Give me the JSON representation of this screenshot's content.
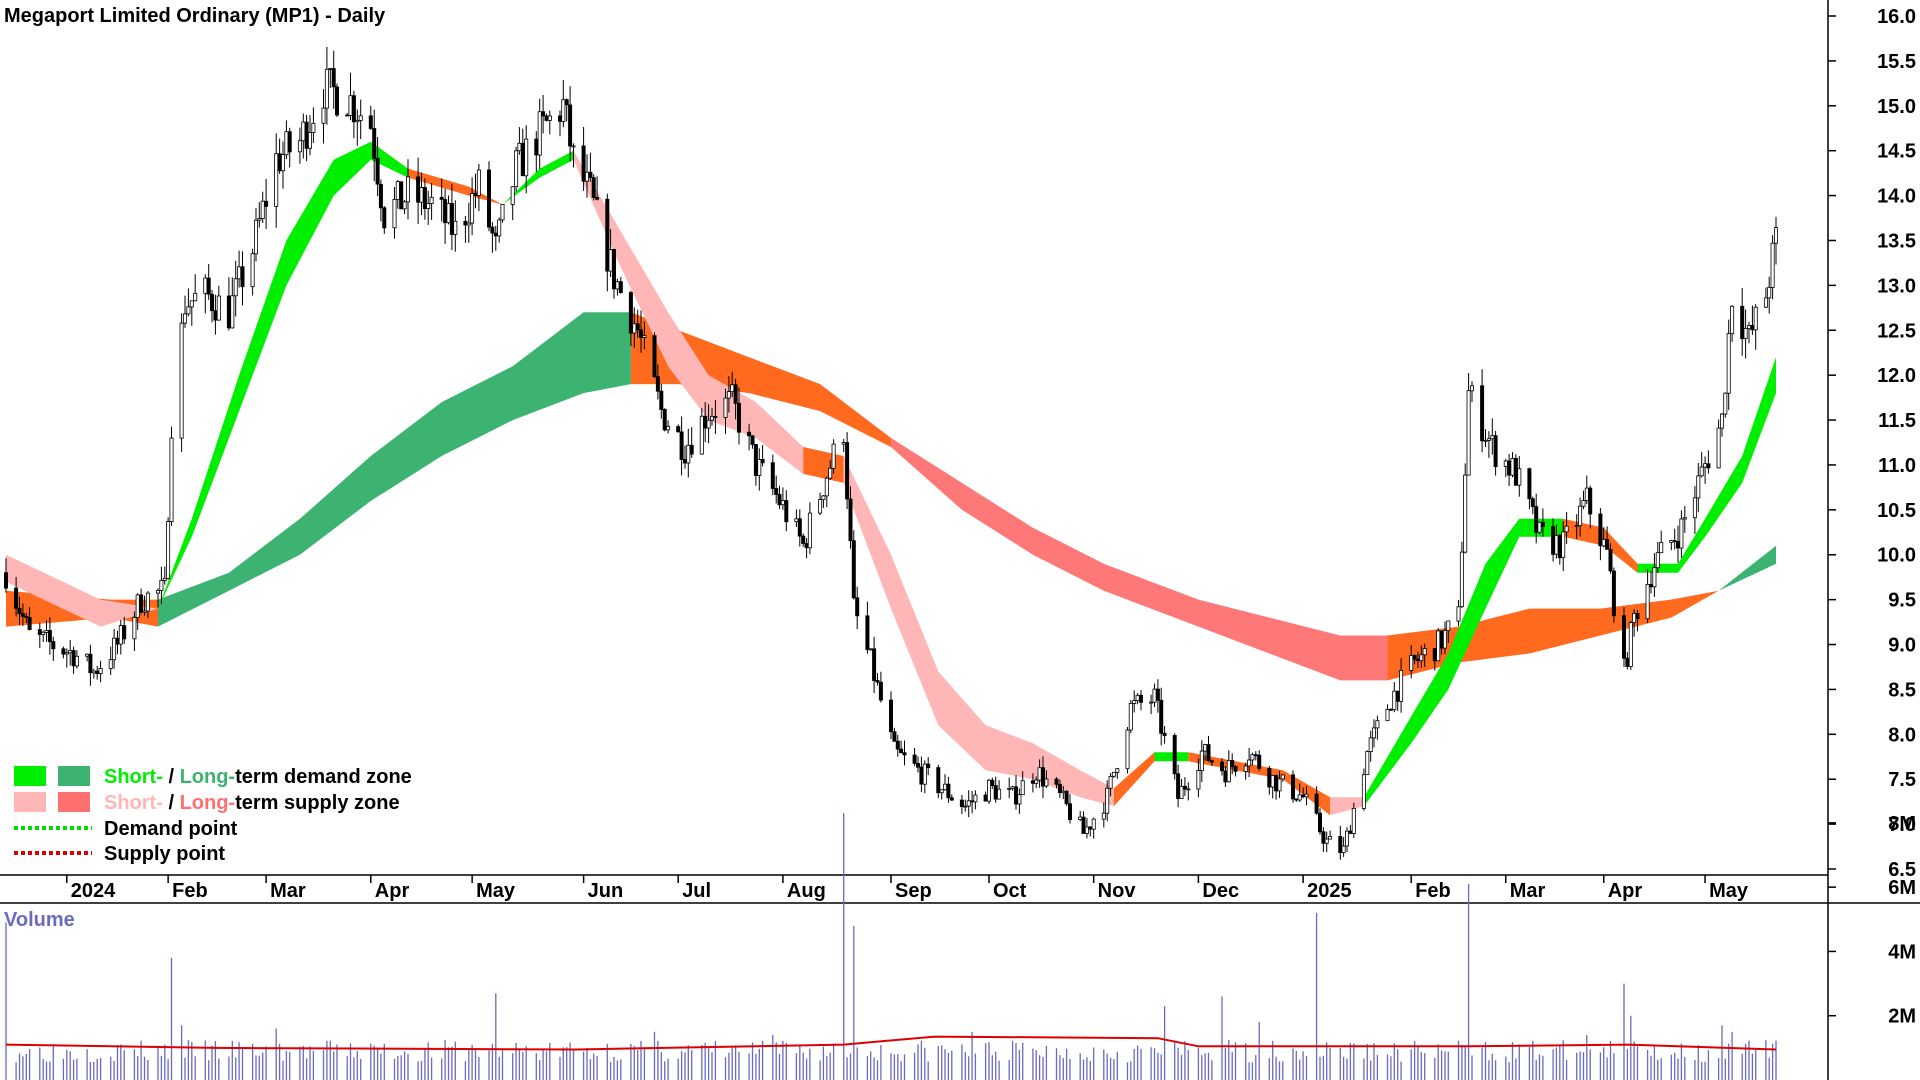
{
  "chart_data": {
    "type": "candlestick",
    "title": "Megaport Limited Ordinary (MP1) - Daily",
    "y_ticks": [
      6.5,
      7.0,
      7.5,
      8.0,
      8.5,
      9.0,
      9.5,
      10.0,
      10.5,
      11.0,
      11.5,
      12.0,
      12.5,
      13.0,
      13.5,
      14.0,
      14.5,
      15.0,
      15.5,
      16.0
    ],
    "ylim": [
      6.2,
      16.2
    ],
    "x_range": [
      "2023-12-15",
      "2025-05-22"
    ],
    "x_labels": [
      {
        "date": "2024-01-02",
        "label": "2024"
      },
      {
        "date": "2024-02-01",
        "label": "Feb"
      },
      {
        "date": "2024-03-01",
        "label": "Mar"
      },
      {
        "date": "2024-04-01",
        "label": "Apr"
      },
      {
        "date": "2024-05-01",
        "label": "May"
      },
      {
        "date": "2024-06-03",
        "label": "Jun"
      },
      {
        "date": "2024-07-01",
        "label": "Jul"
      },
      {
        "date": "2024-08-01",
        "label": "Aug"
      },
      {
        "date": "2024-09-02",
        "label": "Sep"
      },
      {
        "date": "2024-10-01",
        "label": "Oct"
      },
      {
        "date": "2024-11-01",
        "label": "Nov"
      },
      {
        "date": "2024-12-02",
        "label": "Dec"
      },
      {
        "date": "2025-01-02",
        "label": "2025"
      },
      {
        "date": "2025-02-03",
        "label": "Feb"
      },
      {
        "date": "2025-03-03",
        "label": "Mar"
      },
      {
        "date": "2025-04-01",
        "label": "Apr"
      },
      {
        "date": "2025-05-01",
        "label": "May"
      }
    ],
    "close_path": [
      [
        "2023-12-15",
        9.8
      ],
      [
        "2023-12-22",
        9.1
      ],
      [
        "2024-01-04",
        8.9
      ],
      [
        "2024-01-10",
        8.7
      ],
      [
        "2024-01-17",
        9.0
      ],
      [
        "2024-01-24",
        9.5
      ],
      [
        "2024-01-31",
        9.6
      ],
      [
        "2024-02-02",
        11.5
      ],
      [
        "2024-02-06",
        12.8
      ],
      [
        "2024-02-12",
        12.9
      ],
      [
        "2024-02-19",
        12.7
      ],
      [
        "2024-02-26",
        13.4
      ],
      [
        "2024-03-04",
        14.4
      ],
      [
        "2024-03-11",
        14.6
      ],
      [
        "2024-03-18",
        15.2
      ],
      [
        "2024-03-25",
        15.1
      ],
      [
        "2024-04-01",
        14.8
      ],
      [
        "2024-04-05",
        13.8
      ],
      [
        "2024-04-12",
        14.0
      ],
      [
        "2024-04-19",
        13.9
      ],
      [
        "2024-04-26",
        13.6
      ],
      [
        "2024-05-03",
        14.1
      ],
      [
        "2024-05-08",
        13.4
      ],
      [
        "2024-05-14",
        14.3
      ],
      [
        "2024-05-21",
        14.7
      ],
      [
        "2024-05-28",
        15.0
      ],
      [
        "2024-05-31",
        14.4
      ],
      [
        "2024-06-05",
        14.0
      ],
      [
        "2024-06-12",
        13.1
      ],
      [
        "2024-06-19",
        12.5
      ],
      [
        "2024-06-26",
        11.6
      ],
      [
        "2024-07-03",
        11.2
      ],
      [
        "2024-07-10",
        11.6
      ],
      [
        "2024-07-17",
        11.7
      ],
      [
        "2024-07-24",
        11.0
      ],
      [
        "2024-07-31",
        10.6
      ],
      [
        "2024-08-07",
        10.1
      ],
      [
        "2024-08-14",
        10.9
      ],
      [
        "2024-08-19",
        11.4
      ],
      [
        "2024-08-22",
        9.4
      ],
      [
        "2024-08-27",
        8.8
      ],
      [
        "2024-09-03",
        7.8
      ],
      [
        "2024-09-10",
        7.6
      ],
      [
        "2024-09-17",
        7.4
      ],
      [
        "2024-09-24",
        7.2
      ],
      [
        "2024-10-01",
        7.4
      ],
      [
        "2024-10-08",
        7.3
      ],
      [
        "2024-10-15",
        7.6
      ],
      [
        "2024-10-22",
        7.3
      ],
      [
        "2024-10-29",
        6.9
      ],
      [
        "2024-11-05",
        7.3
      ],
      [
        "2024-11-12",
        8.3
      ],
      [
        "2024-11-19",
        8.4
      ],
      [
        "2024-11-26",
        7.3
      ],
      [
        "2024-12-03",
        7.8
      ],
      [
        "2024-12-10",
        7.6
      ],
      [
        "2024-12-17",
        7.8
      ],
      [
        "2024-12-24",
        7.5
      ],
      [
        "2025-01-02",
        7.3
      ],
      [
        "2025-01-09",
        6.8
      ],
      [
        "2025-01-14",
        6.7
      ],
      [
        "2025-01-21",
        7.8
      ],
      [
        "2025-01-28",
        8.4
      ],
      [
        "2025-02-04",
        8.8
      ],
      [
        "2025-02-11",
        9.0
      ],
      [
        "2025-02-17",
        9.3
      ],
      [
        "2025-02-20",
        11.8
      ],
      [
        "2025-02-27",
        11.2
      ],
      [
        "2025-03-06",
        10.9
      ],
      [
        "2025-03-13",
        10.2
      ],
      [
        "2025-03-20",
        10.1
      ],
      [
        "2025-03-27",
        10.6
      ],
      [
        "2025-04-02",
        10.0
      ],
      [
        "2025-04-07",
        8.7
      ],
      [
        "2025-04-10",
        9.3
      ],
      [
        "2025-04-16",
        9.9
      ],
      [
        "2025-04-24",
        10.3
      ],
      [
        "2025-05-01",
        11.0
      ],
      [
        "2025-05-06",
        11.5
      ],
      [
        "2025-05-09",
        12.9
      ],
      [
        "2025-05-14",
        12.4
      ],
      [
        "2025-05-19",
        12.9
      ],
      [
        "2025-05-22",
        13.5
      ]
    ],
    "short_band": [
      [
        "2023-12-15",
        10.0,
        9.7
      ],
      [
        "2024-01-12",
        9.5,
        9.2
      ],
      [
        "2024-01-29",
        9.4,
        9.4
      ],
      [
        "2024-02-08",
        10.4,
        10.2
      ],
      [
        "2024-02-22",
        12.0,
        11.6
      ],
      [
        "2024-03-07",
        13.5,
        13.0
      ],
      [
        "2024-03-21",
        14.4,
        14.0
      ],
      [
        "2024-04-01",
        14.6,
        14.4
      ],
      [
        "2024-04-12",
        14.3,
        14.2
      ],
      [
        "2024-04-30",
        14.1,
        14.0
      ],
      [
        "2024-05-10",
        13.9,
        13.9
      ],
      [
        "2024-05-21",
        14.3,
        14.2
      ],
      [
        "2024-05-31",
        14.5,
        14.4
      ],
      [
        "2024-06-14",
        13.6,
        13.2
      ],
      [
        "2024-06-28",
        12.7,
        12.1
      ],
      [
        "2024-07-10",
        12.0,
        11.5
      ],
      [
        "2024-07-24",
        11.7,
        11.3
      ],
      [
        "2024-08-07",
        11.2,
        10.9
      ],
      [
        "2024-08-19",
        11.1,
        10.8
      ],
      [
        "2024-09-02",
        10.0,
        9.4
      ],
      [
        "2024-09-16",
        8.7,
        8.1
      ],
      [
        "2024-09-30",
        8.1,
        7.6
      ],
      [
        "2024-10-14",
        7.9,
        7.5
      ],
      [
        "2024-10-28",
        7.6,
        7.3
      ],
      [
        "2024-11-07",
        7.4,
        7.2
      ],
      [
        "2024-11-19",
        7.8,
        7.7
      ],
      [
        "2024-11-29",
        7.8,
        7.7
      ],
      [
        "2024-12-13",
        7.7,
        7.6
      ],
      [
        "2024-12-27",
        7.6,
        7.5
      ],
      [
        "2025-01-10",
        7.3,
        7.1
      ],
      [
        "2025-01-20",
        7.3,
        7.2
      ],
      [
        "2025-02-03",
        8.2,
        7.9
      ],
      [
        "2025-02-14",
        8.9,
        8.5
      ],
      [
        "2025-02-25",
        9.9,
        9.4
      ],
      [
        "2025-03-07",
        10.4,
        10.2
      ],
      [
        "2025-03-20",
        10.4,
        10.2
      ],
      [
        "2025-04-01",
        10.3,
        10.1
      ],
      [
        "2025-04-11",
        9.9,
        9.8
      ],
      [
        "2025-04-23",
        9.9,
        9.8
      ],
      [
        "2025-05-01",
        10.4,
        10.2
      ],
      [
        "2025-05-12",
        11.1,
        10.8
      ],
      [
        "2025-05-22",
        12.2,
        11.8
      ]
    ],
    "long_band": [
      [
        "2023-12-15",
        9.6,
        9.2
      ],
      [
        "2024-01-15",
        9.5,
        9.3
      ],
      [
        "2024-01-29",
        9.5,
        9.2
      ],
      [
        "2024-02-19",
        9.8,
        9.6
      ],
      [
        "2024-03-11",
        10.4,
        10.0
      ],
      [
        "2024-04-01",
        11.1,
        10.6
      ],
      [
        "2024-04-22",
        11.7,
        11.1
      ],
      [
        "2024-05-13",
        12.1,
        11.5
      ],
      [
        "2024-06-03",
        12.7,
        11.8
      ],
      [
        "2024-06-17",
        12.7,
        11.9
      ],
      [
        "2024-07-01",
        12.5,
        11.9
      ],
      [
        "2024-07-22",
        12.2,
        11.8
      ],
      [
        "2024-08-12",
        11.9,
        11.6
      ],
      [
        "2024-09-02",
        11.3,
        11.2
      ],
      [
        "2024-09-23",
        10.8,
        10.5
      ],
      [
        "2024-10-14",
        10.3,
        10.0
      ],
      [
        "2024-11-04",
        9.9,
        9.6
      ],
      [
        "2024-12-02",
        9.5,
        9.2
      ],
      [
        "2024-12-23",
        9.3,
        8.9
      ],
      [
        "2025-01-13",
        9.1,
        8.6
      ],
      [
        "2025-01-27",
        9.1,
        8.6
      ],
      [
        "2025-02-17",
        9.2,
        8.8
      ],
      [
        "2025-03-10",
        9.4,
        8.9
      ],
      [
        "2025-03-31",
        9.4,
        9.1
      ],
      [
        "2025-04-21",
        9.5,
        9.3
      ],
      [
        "2025-05-05",
        9.6,
        9.6
      ],
      [
        "2025-05-22",
        10.1,
        9.9
      ]
    ],
    "legend": [
      {
        "label_short": "Short-",
        "label_sep": " / ",
        "label_long": "Long-",
        "label_rest": "term demand zone",
        "short_color": "#00ee00",
        "long_color": "#3cb371"
      },
      {
        "label_short": "Short-",
        "label_sep": " / ",
        "label_long": "Long-",
        "label_rest": "term supply zone",
        "short_color": "#ffb6b6",
        "long_color": "#ff7070"
      },
      {
        "label": "Demand point",
        "color": "#00dd00"
      },
      {
        "label": "Supply point",
        "color": "#dd0000"
      }
    ],
    "volume": {
      "label": "Volume",
      "y_ticks": [
        {
          "value": 2,
          "label": "2M"
        },
        {
          "value": 4,
          "label": "4M"
        },
        {
          "value": 6,
          "label": "6M"
        },
        {
          "value": 8,
          "label": "8M"
        }
      ],
      "ylim": [
        0,
        8.8
      ],
      "base_level": 0.55,
      "avg_path": [
        [
          "2023-12-15",
          1.1
        ],
        [
          "2024-02-15",
          1.0
        ],
        [
          "2024-06-01",
          0.95
        ],
        [
          "2024-08-19",
          1.1
        ],
        [
          "2024-09-15",
          1.35
        ],
        [
          "2024-11-20",
          1.3
        ],
        [
          "2024-12-02",
          1.05
        ],
        [
          "2025-02-20",
          1.05
        ],
        [
          "2025-04-08",
          1.1
        ],
        [
          "2025-05-22",
          0.95
        ]
      ],
      "spikes": [
        [
          "2023-12-15",
          4.9
        ],
        [
          "2024-02-02",
          3.8
        ],
        [
          "2024-02-05",
          1.7
        ],
        [
          "2024-05-08",
          2.7
        ],
        [
          "2024-08-19",
          8.3
        ],
        [
          "2024-08-22",
          4.8
        ],
        [
          "2024-11-22",
          2.3
        ],
        [
          "2024-12-09",
          2.6
        ],
        [
          "2024-12-20",
          1.8
        ],
        [
          "2025-01-06",
          5.2
        ],
        [
          "2025-02-20",
          6.1
        ],
        [
          "2025-04-07",
          3.0
        ],
        [
          "2025-04-09",
          2.0
        ],
        [
          "2025-05-06",
          1.7
        ],
        [
          "2025-05-09",
          1.5
        ],
        [
          "2025-03-27",
          1.4
        ],
        [
          "2024-03-04",
          1.6
        ],
        [
          "2024-06-24",
          1.5
        ],
        [
          "2024-07-29",
          1.4
        ],
        [
          "2024-09-26",
          1.5
        ]
      ],
      "avg_color": "#dd0000",
      "bar_color": "#6a6ac0"
    },
    "colors": {
      "short_demand": "#00ee00",
      "long_demand": "#3cb371",
      "short_supply": "#ffb6b6",
      "long_supply": "#ff6a1f",
      "long_supply_alt": "#ff7878"
    },
    "grid": false,
    "legend_position": "bottom-left"
  }
}
